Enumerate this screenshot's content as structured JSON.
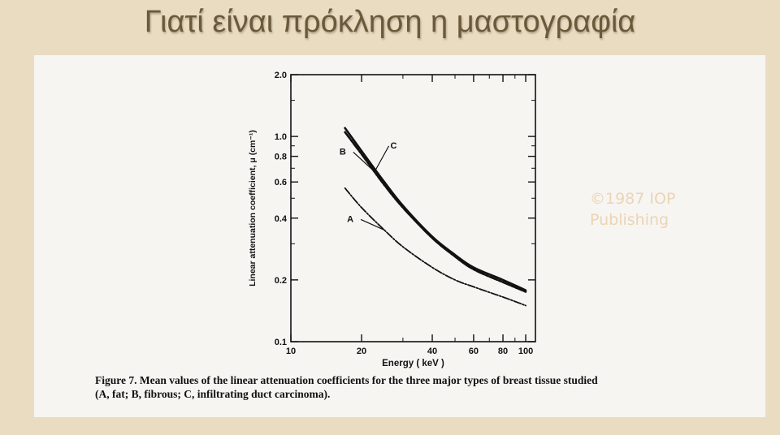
{
  "slide": {
    "title": "Γιατί είναι πρόκληση η μαστογραφία",
    "copyright_line1": "©1987 IOP",
    "copyright_line2": "Publishing",
    "caption_line1": "Figure 7.  Mean values of the linear attenuation coefficients for the three major types of breast tissue studied",
    "caption_line2": "(A, fat; B, fibrous; C, infiltrating duct carcinoma)."
  },
  "chart_data": {
    "type": "line",
    "xlabel": "Energy ( keV )",
    "ylabel": "Linear attenuation coefficient, μ (cm⁻¹)",
    "x_scale": "log",
    "y_scale": "log",
    "xlim": [
      10,
      110
    ],
    "ylim": [
      0.1,
      2.0
    ],
    "x_ticks": [
      {
        "value": 10,
        "label": "10"
      },
      {
        "value": 20,
        "label": "20"
      },
      {
        "value": 40,
        "label": "40"
      },
      {
        "value": 60,
        "label": "60"
      },
      {
        "value": 80,
        "label": "80"
      },
      {
        "value": 100,
        "label": "100"
      }
    ],
    "y_ticks": [
      {
        "value": 0.1,
        "label": "0.1"
      },
      {
        "value": 0.2,
        "label": "0.2"
      },
      {
        "value": 0.4,
        "label": "0.4"
      },
      {
        "value": 0.6,
        "label": "0.6"
      },
      {
        "value": 0.8,
        "label": "0.8"
      },
      {
        "value": 1.0,
        "label": "1.0"
      },
      {
        "value": 2.0,
        "label": "2.0"
      }
    ],
    "grid": false,
    "series": [
      {
        "name": "A",
        "x": [
          17,
          20,
          25,
          30,
          40,
          50,
          60,
          80,
          100
        ],
        "y": [
          0.56,
          0.45,
          0.35,
          0.29,
          0.23,
          0.2,
          0.185,
          0.165,
          0.15
        ]
      },
      {
        "name": "B",
        "x": [
          17,
          20,
          25,
          30,
          40,
          50,
          60,
          80,
          100
        ],
        "y": [
          1.05,
          0.82,
          0.58,
          0.45,
          0.32,
          0.26,
          0.225,
          0.195,
          0.175
        ]
      },
      {
        "name": "C",
        "x": [
          17,
          20,
          25,
          30,
          40,
          50,
          60,
          80,
          100
        ],
        "y": [
          1.1,
          0.85,
          0.6,
          0.46,
          0.325,
          0.265,
          0.23,
          0.2,
          0.178
        ]
      }
    ],
    "annotations": [
      {
        "text": "A",
        "series": "A",
        "x": 25,
        "y": 0.35
      },
      {
        "text": "B",
        "series": "B",
        "x": 22.5,
        "y": 0.68
      },
      {
        "text": "C",
        "series": "C",
        "x": 23,
        "y": 0.69
      }
    ]
  }
}
